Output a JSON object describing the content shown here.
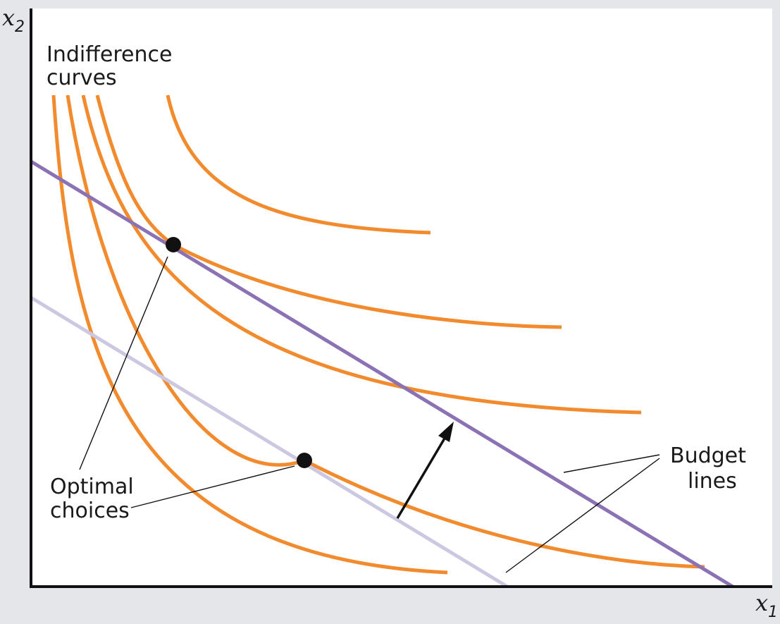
{
  "colors": {
    "background": "#e4e6e9",
    "plot_background": "#ffffff",
    "indifference_curve": "#f28a2e",
    "budget_line_new": "#8a72b4",
    "budget_line_old": "#cdc8e2",
    "optimal_point": "#111111",
    "axis": "#111111"
  },
  "axes": {
    "x_variable": "x",
    "x_subscript": "1",
    "y_variable": "x",
    "y_subscript": "2"
  },
  "annotations": {
    "indifference_curves_line1": "Indifference",
    "indifference_curves_line2": "curves",
    "optimal_choices_line1": "Optimal",
    "optimal_choices_line2": "choices",
    "budget_lines_line1": "Budget",
    "budget_lines_line2": "lines"
  },
  "diagram": {
    "indifference_curve_count": 5,
    "budget_line_count": 2,
    "optimal_choice_count": 2,
    "shift_direction": "outward"
  }
}
